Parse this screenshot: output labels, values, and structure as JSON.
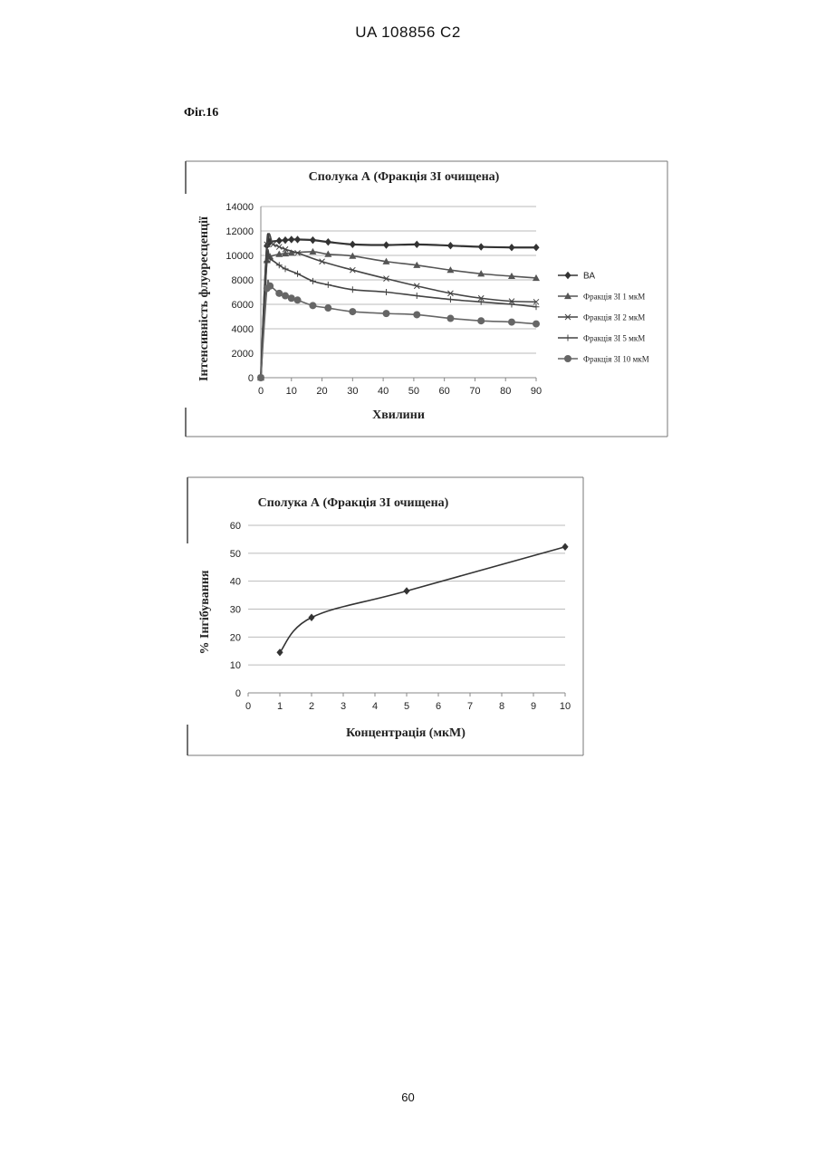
{
  "header": {
    "text": "UA   108856   C2"
  },
  "figure_label": "Фіг.16",
  "page_number": "60",
  "chart_data": [
    {
      "type": "line",
      "title": "Сполука А (Фракція 3І очищена)",
      "xlabel": "Хвилини",
      "ylabel": "Інтенсивність флуоресценції",
      "xlim": [
        0,
        90
      ],
      "ylim": [
        0,
        14000
      ],
      "xticks": [
        "0",
        "10",
        "20",
        "30",
        "40",
        "50",
        "60",
        "70",
        "80",
        "90"
      ],
      "yticks": [
        "0",
        "2000",
        "4000",
        "6000",
        "8000",
        "10000",
        "12000",
        "14000"
      ],
      "grid": true,
      "legend_position": "right",
      "series": [
        {
          "name": "ВА",
          "marker": "diamond",
          "color": "#333333",
          "points": [
            [
              0,
              0
            ],
            [
              2,
              10800
            ],
            [
              3,
              11100
            ],
            [
              6,
              11200
            ],
            [
              8,
              11250
            ],
            [
              10,
              11300
            ],
            [
              12,
              11300
            ],
            [
              17,
              11250
            ],
            [
              22,
              11100
            ],
            [
              30,
              10900
            ],
            [
              41,
              10850
            ],
            [
              51,
              10900
            ],
            [
              62,
              10800
            ],
            [
              72,
              10700
            ],
            [
              82,
              10650
            ],
            [
              90,
              10650
            ]
          ]
        },
        {
          "name": "Фракція 3І 1 мкМ",
          "marker": "triangle",
          "color": "#555555",
          "points": [
            [
              0,
              0
            ],
            [
              2,
              9600
            ],
            [
              3,
              9900
            ],
            [
              6,
              10100
            ],
            [
              8,
              10150
            ],
            [
              10,
              10200
            ],
            [
              17,
              10300
            ],
            [
              22,
              10100
            ],
            [
              30,
              9950
            ],
            [
              41,
              9500
            ],
            [
              51,
              9200
            ],
            [
              62,
              8800
            ],
            [
              72,
              8500
            ],
            [
              82,
              8300
            ],
            [
              90,
              8150
            ]
          ]
        },
        {
          "name": "Фракція 3І 2 мкМ",
          "marker": "x",
          "color": "#444444",
          "points": [
            [
              0,
              0
            ],
            [
              2,
              10900
            ],
            [
              4,
              10900
            ],
            [
              6,
              10700
            ],
            [
              8,
              10500
            ],
            [
              12,
              10200
            ],
            [
              20,
              9500
            ],
            [
              30,
              8800
            ],
            [
              41,
              8100
            ],
            [
              51,
              7500
            ],
            [
              62,
              6900
            ],
            [
              72,
              6500
            ],
            [
              82,
              6250
            ],
            [
              90,
              6200
            ]
          ]
        },
        {
          "name": "Фракція 3І 5 мкМ",
          "marker": "plus",
          "color": "#444444",
          "points": [
            [
              0,
              0
            ],
            [
              2,
              9500
            ],
            [
              3,
              9700
            ],
            [
              6,
              9200
            ],
            [
              8,
              8900
            ],
            [
              12,
              8500
            ],
            [
              17,
              7900
            ],
            [
              22,
              7600
            ],
            [
              30,
              7200
            ],
            [
              41,
              7000
            ],
            [
              51,
              6700
            ],
            [
              62,
              6400
            ],
            [
              72,
              6200
            ],
            [
              82,
              6000
            ],
            [
              90,
              5800
            ]
          ]
        },
        {
          "name": "Фракція 3І 10 мкМ",
          "marker": "circle",
          "color": "#666666",
          "points": [
            [
              0,
              0
            ],
            [
              2,
              7300
            ],
            [
              3,
              7500
            ],
            [
              6,
              6900
            ],
            [
              8,
              6700
            ],
            [
              10,
              6500
            ],
            [
              12,
              6350
            ],
            [
              17,
              5900
            ],
            [
              22,
              5700
            ],
            [
              30,
              5400
            ],
            [
              41,
              5250
            ],
            [
              51,
              5150
            ],
            [
              62,
              4850
            ],
            [
              72,
              4650
            ],
            [
              82,
              4550
            ],
            [
              90,
              4400
            ]
          ]
        }
      ]
    },
    {
      "type": "line",
      "title": "Сполука А (Фракція 3І очищена)",
      "xlabel": "Концентрація (мкМ)",
      "ylabel": "% Інгібування",
      "xlim": [
        0,
        10
      ],
      "ylim": [
        0,
        60
      ],
      "xticks": [
        "0",
        "1",
        "2",
        "3",
        "4",
        "5",
        "6",
        "7",
        "8",
        "9",
        "10"
      ],
      "yticks": [
        "0",
        "10",
        "20",
        "30",
        "40",
        "50",
        "60"
      ],
      "grid": true,
      "series": [
        {
          "marker": "diamond",
          "color": "#333333",
          "points": [
            [
              1,
              14.5
            ],
            [
              2,
              27
            ],
            [
              5,
              36.5
            ],
            [
              10,
              52.3
            ]
          ]
        }
      ]
    }
  ]
}
